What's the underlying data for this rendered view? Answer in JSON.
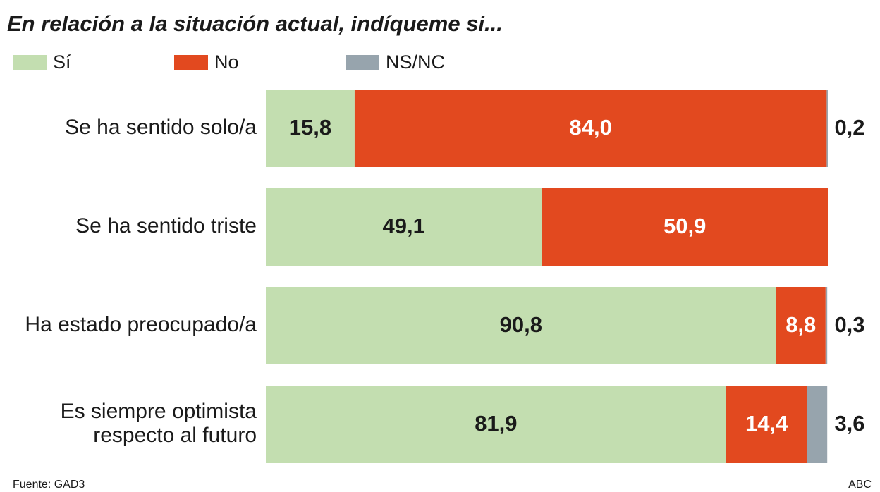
{
  "chart_data": {
    "type": "stacked-bar-horizontal",
    "title": "En relación a la situación actual, indíqueme si...",
    "categories": [
      [
        "Se ha sentido solo/a"
      ],
      [
        "Se ha sentido triste"
      ],
      [
        "Ha estado preocupado/a"
      ],
      [
        "Es siempre optimista",
        "respecto al futuro"
      ]
    ],
    "xlim": [
      0,
      100
    ],
    "series": [
      {
        "name": "Sí",
        "color": "#c3deb0",
        "label_color": "#1a1a1a",
        "values": [
          15.8,
          49.1,
          90.8,
          81.9
        ],
        "value_labels": [
          "15,8",
          "49,1",
          "90,8",
          "81,9"
        ]
      },
      {
        "name": "No",
        "color": "#e2491f",
        "label_color": "#ffffff",
        "values": [
          84.0,
          50.9,
          8.8,
          14.4
        ],
        "value_labels": [
          "84,0",
          "50,9",
          "8,8",
          "14,4"
        ]
      },
      {
        "name": "NS/NC",
        "color": "#97a4ad",
        "label_color": "#1a1a1a",
        "values": [
          0.2,
          null,
          0.3,
          3.6
        ],
        "value_labels": [
          "0,2",
          null,
          "0,3",
          "3,6"
        ],
        "labels_outside": true
      }
    ],
    "source": "Fuente: GAD3",
    "credit": "ABC"
  }
}
